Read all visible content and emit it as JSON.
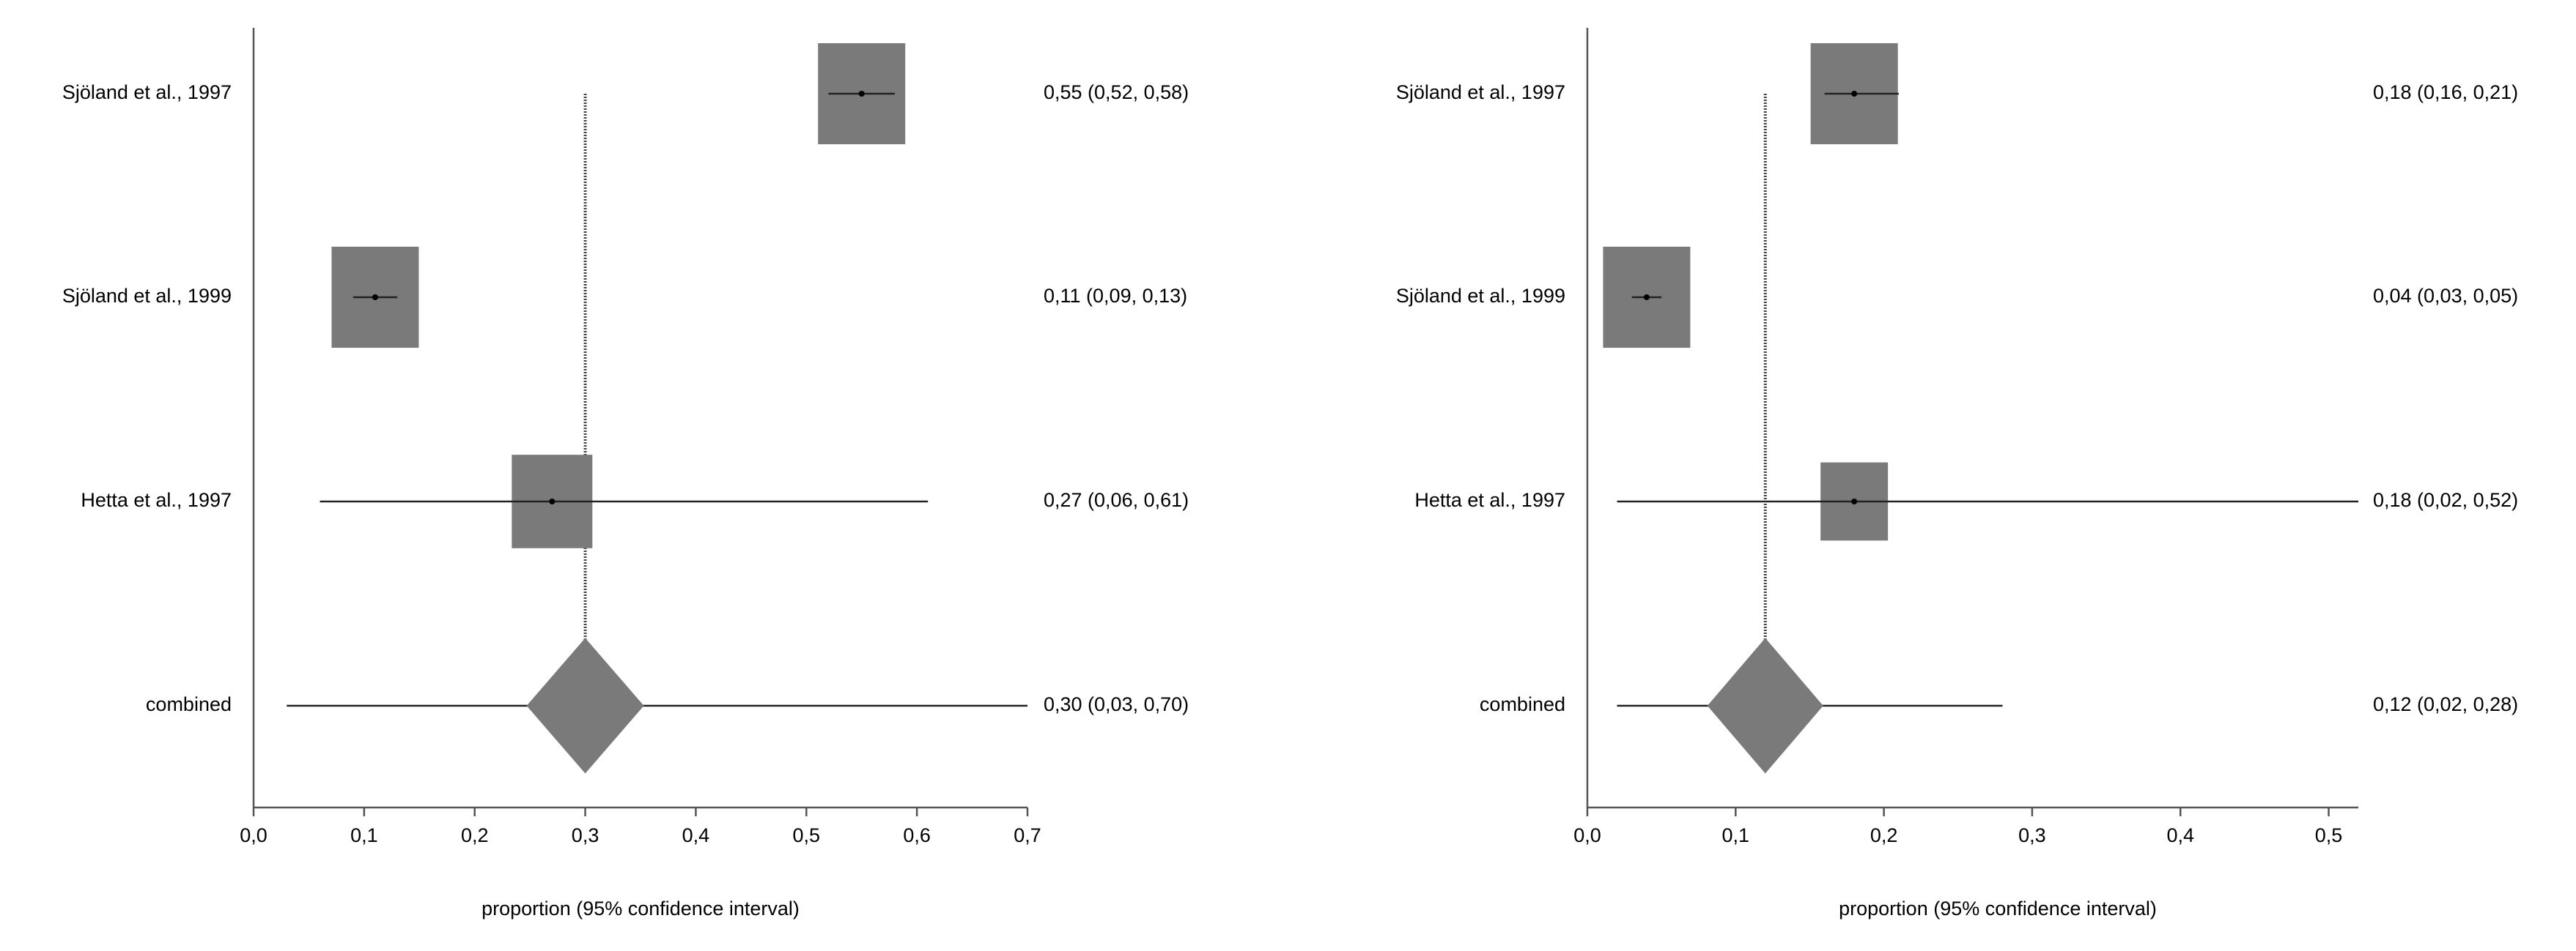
{
  "chart_data": [
    {
      "type": "forest",
      "xlabel": "proportion (95% confidence interval)",
      "xlim": [
        0,
        0.7
      ],
      "xticks": [
        "0,0",
        "0,1",
        "0,2",
        "0,3",
        "0,4",
        "0,5",
        "0,6",
        "0,7"
      ],
      "combined_estimate_line": 0.3,
      "studies": [
        {
          "label": "Sjöland et al., 1997",
          "estimate": 0.55,
          "lower": 0.52,
          "upper": 0.58,
          "text": "0,55 (0,52, 0,58)"
        },
        {
          "label": "Sjöland et al., 1999",
          "estimate": 0.11,
          "lower": 0.09,
          "upper": 0.13,
          "text": "0,11 (0,09, 0,13)"
        },
        {
          "label": "Hetta et al., 1997",
          "estimate": 0.27,
          "lower": 0.06,
          "upper": 0.61,
          "text": "0,27 (0,06, 0,61)"
        }
      ],
      "combined": {
        "label": "combined",
        "estimate": 0.3,
        "lower": 0.03,
        "upper": 0.7,
        "text": "0,30 (0,03, 0,70)"
      }
    },
    {
      "type": "forest",
      "xlabel": "proportion (95% confidence interval)",
      "xlim": [
        0,
        0.52
      ],
      "xticks": [
        "0,0",
        "0,1",
        "0,2",
        "0,3",
        "0,4",
        "0,5"
      ],
      "combined_estimate_line": 0.12,
      "studies": [
        {
          "label": "Sjöland et al., 1997",
          "estimate": 0.18,
          "lower": 0.16,
          "upper": 0.21,
          "text": "0,18 (0,16, 0,21)"
        },
        {
          "label": "Sjöland et al., 1999",
          "estimate": 0.04,
          "lower": 0.03,
          "upper": 0.05,
          "text": "0,04 (0,03, 0,05)"
        },
        {
          "label": "Hetta et al., 1997",
          "estimate": 0.18,
          "lower": 0.02,
          "upper": 0.52,
          "text": "0,18 (0,02, 0,52)"
        }
      ],
      "combined": {
        "label": "combined",
        "estimate": 0.12,
        "lower": 0.02,
        "upper": 0.28,
        "text": "0,12 (0,02, 0,28)"
      }
    }
  ]
}
